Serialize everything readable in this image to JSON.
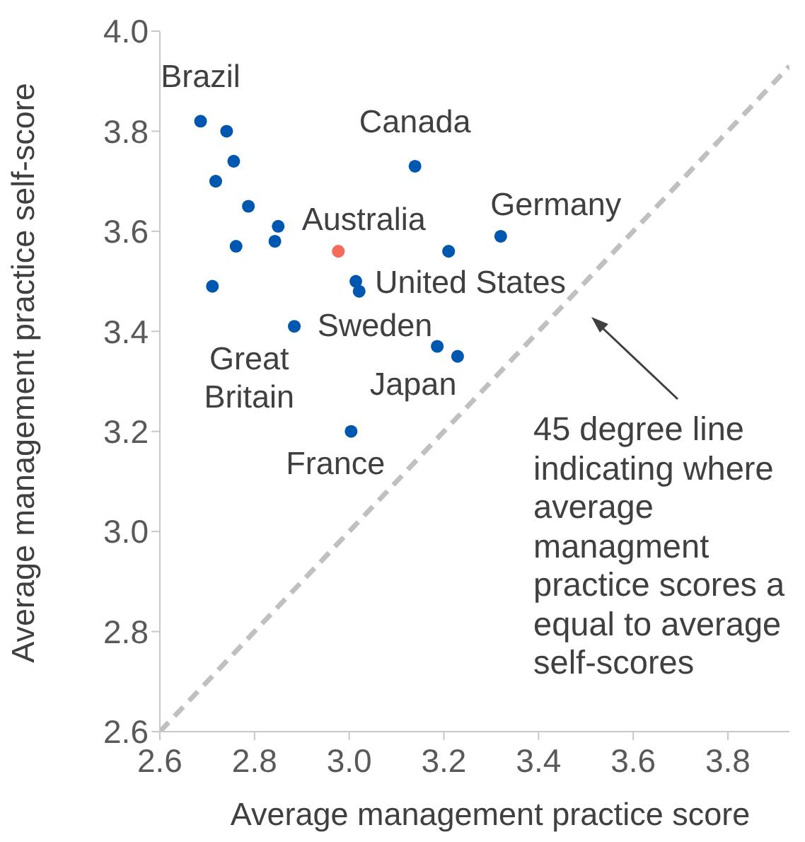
{
  "chart_data": {
    "type": "scatter",
    "xlabel": "Average management practice score",
    "ylabel": "Average management practice self-score",
    "xlim": [
      2.6,
      3.93
    ],
    "xticks": [
      2.6,
      2.8,
      {
        "value": 3,
        "label": "3.0"
      },
      3.2,
      3.4,
      3.6,
      3.8
    ],
    "ylim": [
      2.6,
      4.0
    ],
    "yticks": [
      2.6,
      2.8,
      {
        "value": 3,
        "label": "3.0"
      },
      3.2,
      3.4,
      3.6,
      3.8,
      {
        "value": 4,
        "label": "4.0"
      }
    ],
    "marker": "circle",
    "series": [
      {
        "x": [
          2.686,
          2.741,
          2.756,
          2.718,
          2.787,
          2.85,
          2.843,
          2.761,
          2.711,
          2.977,
          3.014,
          3.021,
          2.884,
          3.139,
          3.21,
          3.32,
          3.186,
          3.229,
          3.004
        ],
        "values": [
          3.82,
          3.8,
          3.74,
          3.7,
          3.65,
          3.61,
          3.58,
          3.57,
          3.49,
          3.56,
          3.5,
          3.48,
          3.41,
          3.73,
          3.56,
          3.59,
          3.37,
          3.35,
          3.2
        ],
        "colors": [
          "#0057b0",
          "#0057b0",
          "#0057b0",
          "#0057b0",
          "#0057b0",
          "#0057b0",
          "#0057b0",
          "#0057b0",
          "#0057b0",
          "#f26b5b",
          "#0057b0",
          "#0057b0",
          "#0057b0",
          "#0057b0",
          "#0057b0",
          "#0057b0",
          "#0057b0",
          "#0057b0",
          "#0057b0"
        ]
      },
      {
        "type": "line",
        "x": [
          2.6,
          3.93
        ],
        "values": [
          2.6,
          3.93
        ],
        "color": "#c0c0c0",
        "line_style": "dashed",
        "marker": "none"
      }
    ],
    "annotations": [
      {
        "text": "Brazil",
        "x": 2.686,
        "y": 3.82
      },
      {
        "text": "Canada",
        "x": 3.139,
        "y": 3.73
      },
      {
        "text": "Germany",
        "x": 3.32,
        "y": 3.59
      },
      {
        "text": "Australia",
        "x": 2.977,
        "y": 3.56
      },
      {
        "text": "United States",
        "x": 3.014,
        "y": 3.5
      },
      {
        "text": "Sweden",
        "x": 2.884,
        "y": 3.41
      },
      {
        "text": "Great Britain",
        "x": 2.711,
        "y": 3.49
      },
      {
        "text": "Japan",
        "x": 3.186,
        "y": 3.37
      },
      {
        "text": "France",
        "x": 3.004,
        "y": 3.2
      },
      "45 degree line indicating where average managment practice scores a equal to average self-scores"
    ]
  }
}
